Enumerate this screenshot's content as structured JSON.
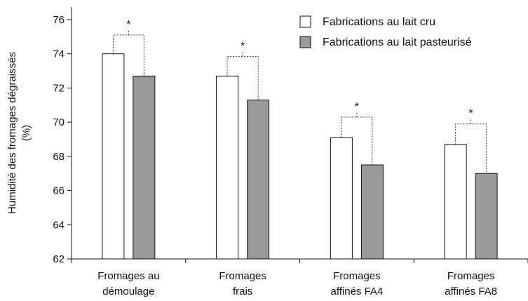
{
  "chart_data": {
    "type": "bar",
    "title": "",
    "xlabel": "",
    "ylabel_lines": [
      "Humidité des fromages dégraissés",
      "(%)"
    ],
    "ylim": [
      62,
      76
    ],
    "yticks": [
      62,
      64,
      66,
      68,
      70,
      72,
      74,
      76
    ],
    "grid": false,
    "legend_position": "top-right",
    "categories": [
      [
        "Fromages au",
        "démoulage"
      ],
      [
        "Fromages",
        "frais"
      ],
      [
        "Fromages",
        "affinés FA4"
      ],
      [
        "Fromages",
        "affinés FA8"
      ]
    ],
    "series": [
      {
        "name": "Fabrications au lait cru",
        "color": "#ffffff",
        "values": [
          74.0,
          72.7,
          69.1,
          68.7
        ]
      },
      {
        "name": "Fabrications au lait pasteurisé",
        "color": "#999999",
        "values": [
          72.7,
          71.3,
          67.5,
          67.0
        ]
      }
    ],
    "significance": [
      "*",
      "*",
      "*",
      "*"
    ],
    "significance_line_values": [
      75.1,
      73.85,
      70.3,
      69.9
    ]
  }
}
